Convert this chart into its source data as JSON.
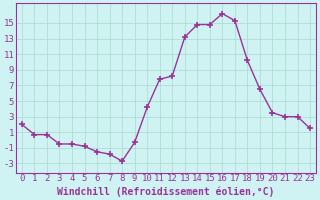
{
  "x": [
    0,
    1,
    2,
    3,
    4,
    5,
    6,
    7,
    8,
    9,
    10,
    11,
    12,
    13,
    14,
    15,
    16,
    17,
    18,
    19,
    20,
    21,
    22,
    23
  ],
  "y": [
    2,
    0.7,
    0.7,
    -0.5,
    -0.5,
    -0.8,
    -1.5,
    -1.8,
    -2.7,
    -0.3,
    4.2,
    7.8,
    8.2,
    13.2,
    14.8,
    14.8,
    16.2,
    15.3,
    10.2,
    6.5,
    3.5,
    3.0,
    3.0,
    1.5
  ],
  "line_color": "#993399",
  "marker": "+",
  "marker_size": 4,
  "marker_lw": 1.2,
  "line_width": 1.0,
  "bg_color": "#cff3f3",
  "grid_color": "#aad8cc",
  "xlabel": "Windchill (Refroidissement éolien,°C)",
  "xlabel_fontsize": 7,
  "xtick_labels": [
    "0",
    "1",
    "2",
    "3",
    "4",
    "5",
    "6",
    "7",
    "8",
    "9",
    "10",
    "11",
    "12",
    "13",
    "14",
    "15",
    "16",
    "17",
    "18",
    "19",
    "20",
    "21",
    "22",
    "23"
  ],
  "ytick_values": [
    -3,
    -1,
    1,
    3,
    5,
    7,
    9,
    11,
    13,
    15
  ],
  "ylim": [
    -4.2,
    17.5
  ],
  "xlim": [
    -0.5,
    23.5
  ],
  "tick_fontsize": 6.5,
  "font_family": "monospace"
}
